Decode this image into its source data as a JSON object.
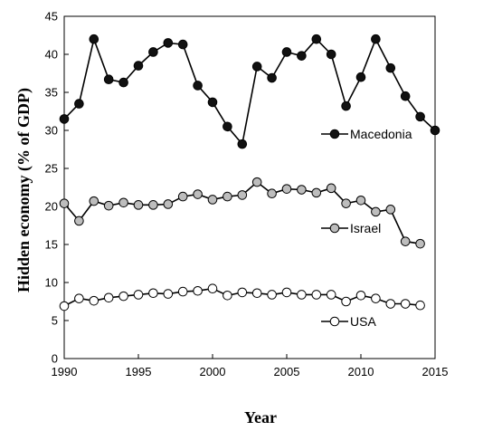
{
  "chart_data": {
    "type": "line",
    "title": "",
    "xlabel": "Year",
    "ylabel": "Hidden economy (% of GDP)",
    "xlim": [
      1990,
      2015
    ],
    "ylim": [
      0,
      45
    ],
    "xticks": [
      "1990",
      "1995",
      "2000",
      "2005",
      "2010",
      "2015"
    ],
    "yticks": [
      "0",
      "5",
      "10",
      "15",
      "20",
      "25",
      "30",
      "35",
      "40",
      "45"
    ],
    "grid": false,
    "legend_placement": "inline-right",
    "series": [
      {
        "name": "Macedonia",
        "marker_fill": "#111111",
        "x": [
          1990,
          1991,
          1992,
          1993,
          1994,
          1995,
          1996,
          1997,
          1998,
          1999,
          2000,
          2001,
          2002,
          2003,
          2004,
          2005,
          2006,
          2007,
          2008,
          2009,
          2010,
          2011,
          2012,
          2013,
          2014,
          2015
        ],
        "y": [
          31.5,
          33.5,
          42.0,
          36.7,
          36.3,
          38.5,
          40.3,
          41.5,
          41.3,
          35.9,
          33.7,
          30.5,
          28.2,
          38.4,
          36.9,
          40.3,
          39.8,
          42.0,
          40.0,
          33.2,
          37.0,
          42.0,
          38.2,
          34.5,
          31.8,
          30.0
        ]
      },
      {
        "name": "Israel",
        "marker_fill": "#bdbdbd",
        "x": [
          1990,
          1991,
          1992,
          1993,
          1994,
          1995,
          1996,
          1997,
          1998,
          1999,
          2000,
          2001,
          2002,
          2003,
          2004,
          2005,
          2006,
          2007,
          2008,
          2009,
          2010,
          2011,
          2012,
          2013,
          2014
        ],
        "y": [
          20.4,
          18.1,
          20.7,
          20.1,
          20.5,
          20.2,
          20.2,
          20.3,
          21.3,
          21.6,
          20.9,
          21.3,
          21.5,
          23.2,
          21.7,
          22.3,
          22.2,
          21.8,
          22.4,
          20.4,
          20.8,
          19.3,
          19.6,
          15.4,
          15.1
        ]
      },
      {
        "name": "USA",
        "marker_fill": "#ffffff",
        "x": [
          1990,
          1991,
          1992,
          1993,
          1994,
          1995,
          1996,
          1997,
          1998,
          1999,
          2000,
          2001,
          2002,
          2003,
          2004,
          2005,
          2006,
          2007,
          2008,
          2009,
          2010,
          2011,
          2012,
          2013,
          2014
        ],
        "y": [
          6.9,
          7.9,
          7.6,
          8.0,
          8.2,
          8.4,
          8.6,
          8.5,
          8.8,
          8.9,
          9.2,
          8.3,
          8.7,
          8.6,
          8.4,
          8.7,
          8.4,
          8.4,
          8.4,
          7.5,
          8.3,
          7.9,
          7.2,
          7.2,
          7.0
        ]
      }
    ]
  }
}
